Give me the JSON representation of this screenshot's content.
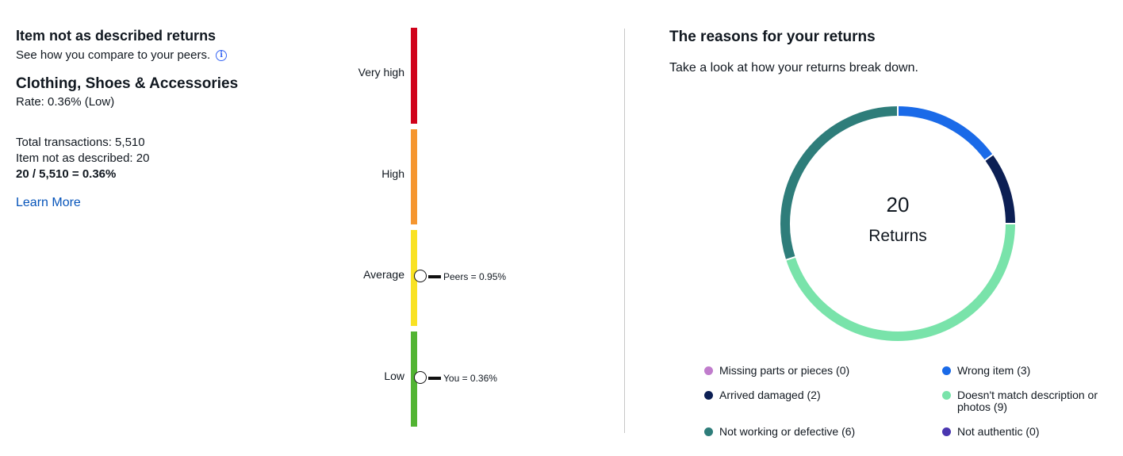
{
  "left": {
    "title": "Item not as described returns",
    "subtitle": "See how you compare to your peers.",
    "info_icon": "i",
    "category": "Clothing, Shoes & Accessories",
    "rate": "Rate: 0.36% (Low)",
    "total_transactions": "Total transactions: 5,510",
    "inad_count": "Item not as described: 20",
    "formula": "20 / 5,510 = 0.36%",
    "learn_more": "Learn More"
  },
  "scale": {
    "bands": [
      {
        "label": "Very high",
        "color": "#d0021b"
      },
      {
        "label": "High",
        "color": "#f5962f"
      },
      {
        "label": "Average",
        "color": "#f9e223"
      },
      {
        "label": "Low",
        "color": "#52b433"
      }
    ],
    "markers": [
      {
        "label": "Peers = 0.95%",
        "band": "Average"
      },
      {
        "label": "You = 0.36%",
        "band": "Low"
      }
    ]
  },
  "right": {
    "title": "The reasons for your returns",
    "subtitle": "Take a look at how your returns break down.",
    "total": "20",
    "total_label": "Returns"
  },
  "chart_data": {
    "type": "pie",
    "variant": "donut",
    "center_text": [
      "20",
      "Returns"
    ],
    "slices": [
      {
        "label": "Missing parts or pieces",
        "value": 0,
        "color": "#c07ccc"
      },
      {
        "label": "Wrong item",
        "value": 3,
        "color": "#1a6ae8"
      },
      {
        "label": "Arrived damaged",
        "value": 2,
        "color": "#0c1f54"
      },
      {
        "label": "Doesn't match description or photos",
        "value": 9,
        "color": "#79e3aa"
      },
      {
        "label": "Not working or defective",
        "value": 6,
        "color": "#2e7d7a"
      },
      {
        "label": "Not authentic",
        "value": 0,
        "color": "#4a36b0"
      }
    ],
    "legend": [
      "Missing parts or pieces (0)",
      "Wrong item (3)",
      "Arrived damaged (2)",
      "Doesn't match description or photos (9)",
      "Not working or defective (6)",
      "Not authentic (0)"
    ]
  }
}
